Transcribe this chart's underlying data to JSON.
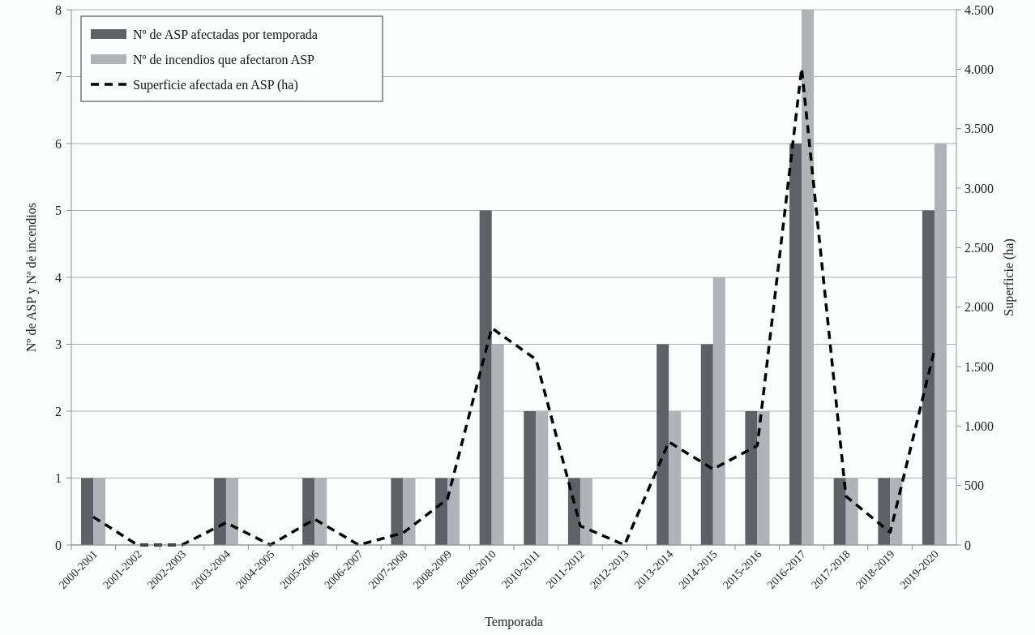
{
  "chart_data": {
    "type": "bar",
    "xlabel": "Temporada",
    "ylabel": "Nº de ASP y Nª de incendios",
    "y2label": "Superficie (ha)",
    "categories": [
      "2000-2001",
      "2001-2002",
      "2002-2003",
      "2003-2004",
      "2004-2005",
      "2005-2006",
      "2006-2007",
      "2007-2008",
      "2008-2009",
      "2009-2010",
      "2010-2011",
      "2011-2012",
      "2012-2013",
      "2013-2014",
      "2014-2015",
      "2015-2016",
      "2016-2017",
      "2017-2018",
      "2018-2019",
      "2019-2020"
    ],
    "series": [
      {
        "name": "Nº de ASP afectadas por temporada",
        "color": "#5f6166",
        "values": [
          1,
          0,
          0,
          1,
          0,
          1,
          0,
          1,
          1,
          5,
          2,
          1,
          0,
          3,
          3,
          2,
          6,
          1,
          1,
          5
        ]
      },
      {
        "name": "Nº de incendios que afectaron ASP",
        "color": "#b0b3b7",
        "values": [
          1,
          0,
          0,
          1,
          0,
          1,
          0,
          1,
          1,
          3,
          2,
          1,
          0,
          2,
          4,
          2,
          8,
          1,
          1,
          6
        ]
      },
      {
        "name": "Superficie afectada en ASP (ha)",
        "type": "line",
        "axis": "y2",
        "color": "#000000",
        "line_style": "dashed",
        "values": [
          236,
          0,
          0,
          188,
          0,
          217,
          0,
          102,
          386,
          1824,
          1560,
          161,
          0,
          866,
          638,
          836,
          4007,
          410,
          106,
          1641
        ]
      }
    ],
    "ylim": [
      0,
      8
    ],
    "yticks": [
      0,
      1,
      2,
      3,
      4,
      5,
      6,
      7,
      8
    ],
    "y2lim": [
      0,
      4500
    ],
    "y2ticks": [
      0,
      {
        "value": 500,
        "label": "500"
      },
      {
        "value": 1000,
        "label": "1.000"
      },
      {
        "value": 1500,
        "label": "1.500"
      },
      {
        "value": 2000,
        "label": "2.000"
      },
      {
        "value": 2500,
        "label": "2.500"
      },
      {
        "value": 3000,
        "label": "3.000"
      },
      {
        "value": 3500,
        "label": "3.500"
      },
      {
        "value": 4000,
        "label": "4.000"
      },
      {
        "value": 4500,
        "label": "4.500"
      }
    ],
    "grid": "y",
    "legend": "top left",
    "marker": "none"
  }
}
